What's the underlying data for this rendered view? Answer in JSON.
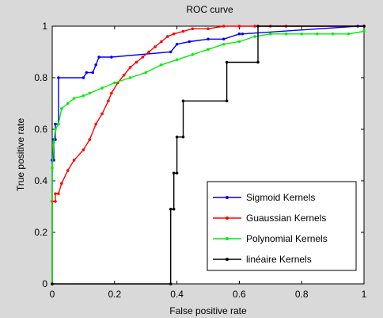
{
  "chart_data": {
    "type": "line",
    "title": "ROC curve",
    "xlabel": "False positive rate",
    "ylabel": "True positive rate",
    "xlim": [
      0,
      1
    ],
    "ylim": [
      0,
      1
    ],
    "xticks": [
      "0",
      "0.2",
      "0.4",
      "0.6",
      "0.8",
      "1"
    ],
    "yticks": [
      "0",
      "0.2",
      "0.4",
      "0.6",
      "0.8",
      "1"
    ],
    "grid": false,
    "legend_position": "bottom-right",
    "series": [
      {
        "name": "Sigmoid Kernels",
        "color": "#0000ff",
        "x": [
          0,
          0,
          0.005,
          0.005,
          0.01,
          0.01,
          0.02,
          0.02,
          0.1,
          0.11,
          0.13,
          0.14,
          0.15,
          0.19,
          0.38,
          0.4,
          0.44,
          0.5,
          0.55,
          0.6,
          0.61,
          0.98,
          1.0
        ],
        "y": [
          0,
          0.48,
          0.48,
          0.56,
          0.56,
          0.62,
          0.62,
          0.8,
          0.8,
          0.82,
          0.82,
          0.85,
          0.88,
          0.88,
          0.9,
          0.93,
          0.94,
          0.95,
          0.95,
          0.97,
          0.97,
          1.0,
          1.0
        ]
      },
      {
        "name": "Guaussian Kernels",
        "color": "#ff0000",
        "x": [
          0,
          0,
          0.01,
          0.01,
          0.02,
          0.03,
          0.05,
          0.07,
          0.1,
          0.12,
          0.14,
          0.16,
          0.18,
          0.19,
          0.21,
          0.23,
          0.25,
          0.27,
          0.29,
          0.31,
          0.33,
          0.35,
          0.37,
          0.39,
          0.42,
          0.45,
          0.5,
          0.55,
          0.6,
          0.65,
          0.7,
          0.75,
          1.0
        ],
        "y": [
          0,
          0.32,
          0.32,
          0.35,
          0.35,
          0.39,
          0.44,
          0.48,
          0.52,
          0.56,
          0.62,
          0.66,
          0.71,
          0.74,
          0.78,
          0.81,
          0.84,
          0.86,
          0.88,
          0.9,
          0.92,
          0.94,
          0.96,
          0.97,
          0.98,
          0.99,
          0.99,
          1.0,
          1.0,
          1.0,
          1.0,
          1.0,
          1.0
        ]
      },
      {
        "name": "Polynomial Kernels",
        "color": "#00ee00",
        "x": [
          0,
          0,
          0.005,
          0.01,
          0.02,
          0.03,
          0.05,
          0.07,
          0.1,
          0.12,
          0.16,
          0.2,
          0.25,
          0.3,
          0.35,
          0.4,
          0.45,
          0.5,
          0.55,
          0.6,
          0.65,
          0.7,
          0.75,
          0.8,
          0.85,
          0.9,
          0.95,
          1.0
        ],
        "y": [
          0,
          0.45,
          0.55,
          0.6,
          0.62,
          0.68,
          0.7,
          0.72,
          0.73,
          0.74,
          0.76,
          0.78,
          0.8,
          0.82,
          0.85,
          0.87,
          0.89,
          0.91,
          0.93,
          0.94,
          0.96,
          0.97,
          0.97,
          0.97,
          0.97,
          0.97,
          0.97,
          0.98
        ]
      },
      {
        "name": "linéaire Kernels",
        "color": "#000000",
        "x": [
          0,
          0.38,
          0.38,
          0.39,
          0.39,
          0.4,
          0.4,
          0.42,
          0.42,
          0.56,
          0.56,
          0.66,
          0.66,
          1.0
        ],
        "y": [
          0,
          0,
          0.29,
          0.29,
          0.43,
          0.43,
          0.57,
          0.57,
          0.71,
          0.71,
          0.86,
          0.86,
          1.0,
          1.0
        ]
      }
    ]
  }
}
